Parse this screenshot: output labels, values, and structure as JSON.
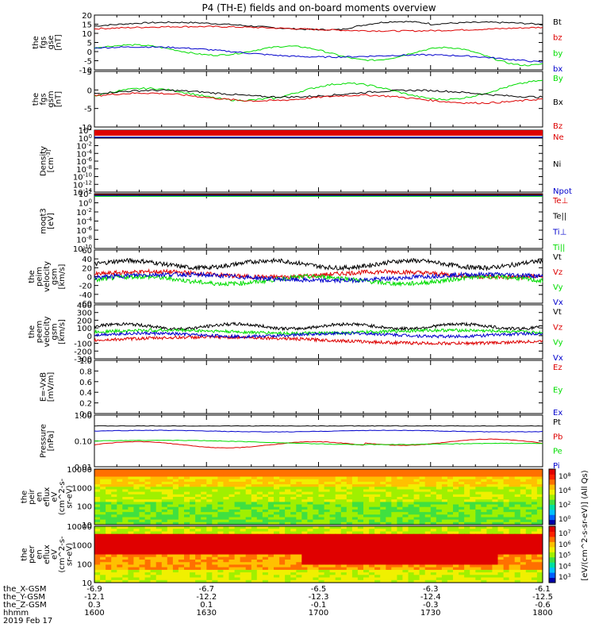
{
  "title": "P4 (TH-E) fields and on-board moments overview",
  "date_label": "2019 Feb 17",
  "orbit_labels": [
    "the_X-GSM",
    "the_Y-GSM",
    "the_Z-GSM",
    "hhmm"
  ],
  "time_axis": {
    "hhmm": [
      "1600",
      "1630",
      "1700",
      "1730",
      "1800"
    ],
    "x_gsm": [
      "-6.9",
      "-6.7",
      "-6.5",
      "-6.3",
      "-6.1"
    ],
    "y_gsm": [
      "-12.1",
      "-12.2",
      "-12.3",
      "-12.4",
      "-12.5"
    ],
    "z_gsm": [
      "0.3",
      "0.1",
      "-0.1",
      "-0.3",
      "-0.6"
    ]
  },
  "colorbar": {
    "label": "[eV/(cm^2-s-sr-eV)] (All Qs)",
    "ion_ticks": [
      "10^8",
      "10^4",
      "10^2",
      "10^0"
    ],
    "elec_ticks": [
      "10^7",
      "10^6",
      "10^5",
      "10^4",
      "10^3"
    ]
  },
  "colors": {
    "black": "#000000",
    "red": "#dd0000",
    "green": "#00dd00",
    "blue": "#0000cc"
  },
  "chart_data": [
    {
      "type": "line",
      "ylabel": [
        "the",
        "fgs",
        "gse",
        "[nT]"
      ],
      "ylim": [
        -10,
        20
      ],
      "yticks": [
        "20",
        "15",
        "10",
        "5",
        "0",
        "-5",
        "-10"
      ],
      "series": [
        {
          "name": "Bt",
          "color": "black"
        },
        {
          "name": "bz",
          "color": "red"
        },
        {
          "name": "by",
          "color": "green"
        },
        {
          "name": "bx",
          "color": "blue"
        }
      ]
    },
    {
      "type": "line",
      "ylabel": [
        "the",
        "fgs",
        "gsm",
        "[nT]"
      ],
      "ylim": [
        -15,
        10
      ],
      "yticks": [
        "5",
        "0",
        "-5",
        "-10"
      ],
      "series": [
        {
          "name": "By",
          "color": "green"
        },
        {
          "name": "Bx",
          "color": "black"
        },
        {
          "name": "Bz",
          "color": "red"
        }
      ]
    },
    {
      "type": "line",
      "ylabel": [
        "Density",
        "[cm^-3]"
      ],
      "log": true,
      "ylim": [
        -14,
        2
      ],
      "yticks": [
        "10^2",
        "10^0",
        "10^-2",
        "10^-4",
        "10^-6",
        "10^-8",
        "10^-10",
        "10^-12",
        "10^-14"
      ],
      "series": [
        {
          "name": "Ne",
          "color": "red"
        },
        {
          "name": "Ni",
          "color": "black"
        },
        {
          "name": "Npot",
          "color": "blue"
        }
      ]
    },
    {
      "type": "line",
      "ylabel": [
        "moqt3",
        "[eV]"
      ],
      "log": true,
      "ylim": [
        -10,
        2
      ],
      "yticks": [
        "10^2",
        "10^0",
        "10^-2",
        "10^-4",
        "10^-6",
        "10^-8",
        "10^-10"
      ],
      "series": [
        {
          "name": "Te⊥",
          "color": "red"
        },
        {
          "name": "Te||",
          "color": "black"
        },
        {
          "name": "Ti⊥",
          "color": "blue"
        },
        {
          "name": "Ti||",
          "color": "green"
        }
      ]
    },
    {
      "type": "line",
      "ylabel": [
        "the",
        "peim",
        "velocity",
        "gsm",
        "[km/s]"
      ],
      "ylim": [
        -60,
        60
      ],
      "yticks": [
        "60",
        "40",
        "20",
        "0",
        "-20",
        "-40",
        "-60"
      ],
      "series": [
        {
          "name": "Vt",
          "color": "black"
        },
        {
          "name": "Vz",
          "color": "red"
        },
        {
          "name": "Vy",
          "color": "green"
        },
        {
          "name": "Vx",
          "color": "blue"
        }
      ]
    },
    {
      "type": "line",
      "ylabel": [
        "the",
        "peem",
        "velocity",
        "gsm",
        "[km/s]"
      ],
      "ylim": [
        -300,
        400
      ],
      "yticks": [
        "400",
        "300",
        "200",
        "100",
        "0",
        "-100",
        "-200",
        "-300"
      ],
      "series": [
        {
          "name": "Vt",
          "color": "black"
        },
        {
          "name": "Vz",
          "color": "red"
        },
        {
          "name": "Vy",
          "color": "green"
        },
        {
          "name": "Vx",
          "color": "blue"
        }
      ]
    },
    {
      "type": "line",
      "ylabel": [
        "E=-VxB",
        "[mV/m]"
      ],
      "ylim": [
        0,
        1
      ],
      "yticks": [
        "1.0",
        "0.8",
        "0.6",
        "0.4",
        "0.2",
        "0.0"
      ],
      "series": [
        {
          "name": "Ez",
          "color": "red"
        },
        {
          "name": "Ey",
          "color": "green"
        },
        {
          "name": "Ex",
          "color": "blue"
        }
      ]
    },
    {
      "type": "line",
      "ylabel": [
        "Pressure",
        "[nPa]"
      ],
      "log": true,
      "ylim": [
        0.01,
        1
      ],
      "yticks": [
        "1.00",
        "0.10",
        "0.01"
      ],
      "series": [
        {
          "name": "Pt",
          "color": "black"
        },
        {
          "name": "Pb",
          "color": "red"
        },
        {
          "name": "Pe",
          "color": "green"
        },
        {
          "name": "Pi",
          "color": "blue"
        }
      ]
    },
    {
      "type": "heatmap",
      "ylabel": [
        "the",
        "peir",
        "en",
        "eflux",
        "eV",
        "(cm^2-s-",
        "sr-eV)"
      ],
      "log": true,
      "yticks": [
        "10000",
        "1000",
        "100",
        "10"
      ]
    },
    {
      "type": "heatmap",
      "ylabel": [
        "the",
        "peer",
        "en",
        "eflux",
        "eV",
        "(cm^2-s-",
        "sr-eV)"
      ],
      "log": true,
      "yticks": [
        "10000",
        "1000",
        "100",
        "10"
      ]
    }
  ]
}
